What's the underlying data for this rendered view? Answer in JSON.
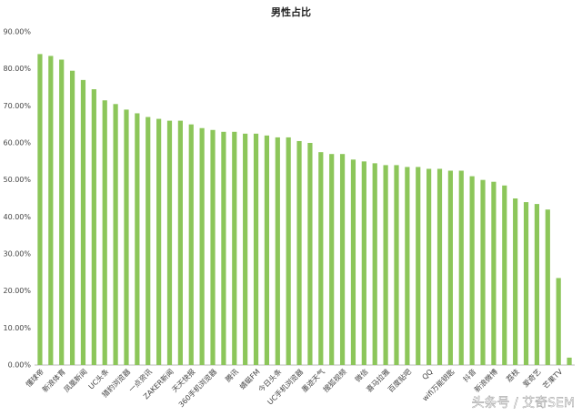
{
  "chart_data": {
    "type": "bar",
    "title": "男性占比",
    "categories": [
      "懂球帝",
      null,
      "新浪体育",
      null,
      "凤凰新闻",
      null,
      "UC头条",
      null,
      "猎豹浏览器",
      null,
      "一点资讯",
      null,
      "ZAKER新闻",
      null,
      "天天快报",
      null,
      "360手机浏览器",
      null,
      "腾讯",
      null,
      "蜻蜓FM",
      null,
      "今日头条",
      null,
      "UC手机浏览器",
      null,
      "墨迹天气",
      null,
      "搜狐视频",
      null,
      "微信",
      null,
      "喜马拉雅",
      null,
      "百度贴吧",
      null,
      "QQ",
      null,
      "wifi万能钥匙",
      null,
      "抖音",
      null,
      "新浪微博",
      null,
      "荔枝",
      null,
      "爱奇艺",
      null,
      "芒果TV",
      null
    ],
    "values": [
      84,
      83.5,
      82.5,
      79.5,
      77,
      74.5,
      71.5,
      70.5,
      69,
      68,
      67,
      66.5,
      66,
      66,
      65,
      64,
      63.5,
      63,
      63,
      62.5,
      62.5,
      62,
      61.5,
      61.5,
      60.5,
      60,
      57.5,
      57,
      57,
      55.5,
      55,
      54.5,
      54,
      54,
      53.5,
      53.5,
      53,
      53,
      52.5,
      52.5,
      51,
      50,
      49.5,
      48.5,
      45,
      44,
      43.5,
      42,
      23.5,
      2
    ],
    "color": "#8cc65a",
    "ylim": [
      0,
      90
    ],
    "yticks": [
      {
        "value": 0,
        "label": "0.00%"
      },
      {
        "value": 10,
        "label": "10.00%"
      },
      {
        "value": 20,
        "label": "20.00%"
      },
      {
        "value": 30,
        "label": "30.00%"
      },
      {
        "value": 40,
        "label": "40.00%"
      },
      {
        "value": 50,
        "label": "50.00%"
      },
      {
        "value": 60,
        "label": "60.00%"
      },
      {
        "value": 70,
        "label": "70.00%"
      },
      {
        "value": 80,
        "label": "80.00%"
      },
      {
        "value": 90,
        "label": "90.00%"
      }
    ],
    "grid": false,
    "watermark": "头条号 / 艾奇SEM"
  }
}
